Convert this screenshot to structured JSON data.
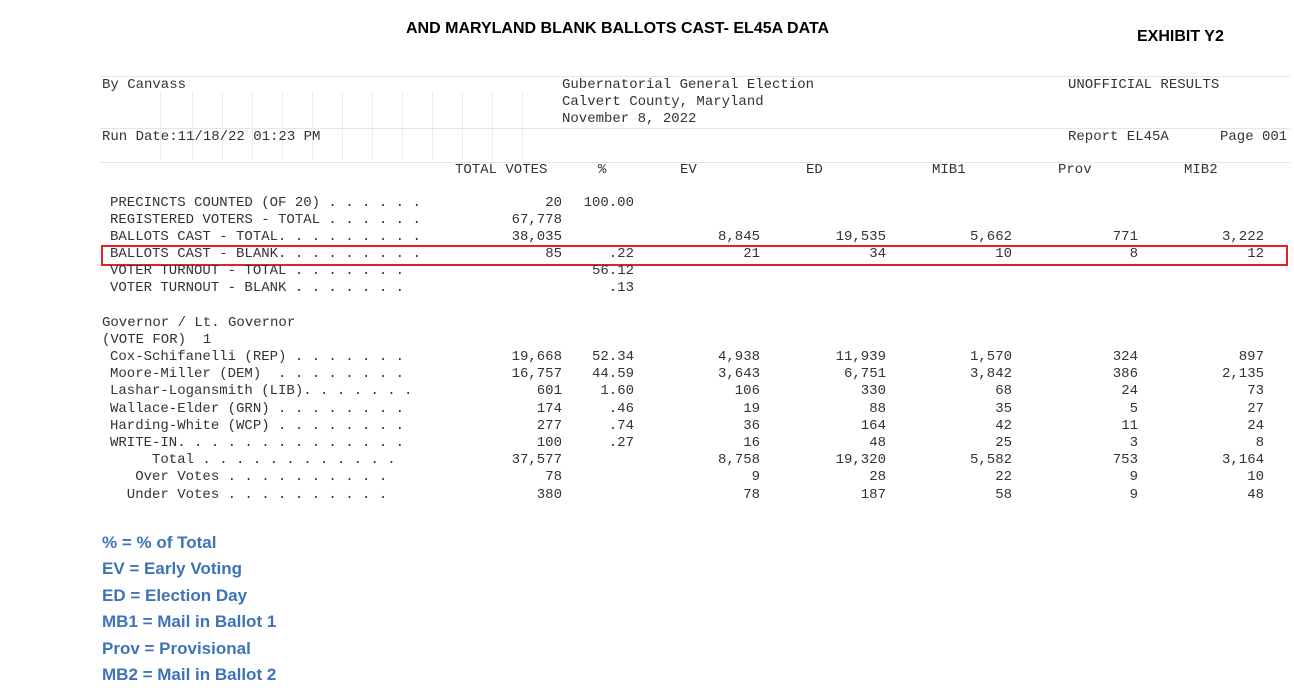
{
  "title": "AND MARYLAND BLANK BALLOTS CAST- EL45A DATA",
  "exhibit": "EXHIBIT Y2",
  "report": {
    "by": "By Canvass",
    "election": "Gubernatorial General Election",
    "county": "Calvert County, Maryland",
    "date": "November 8, 2022",
    "status": "UNOFFICIAL RESULTS",
    "run_date": "Run Date:11/18/22 01:23 PM",
    "report_id": "Report EL45A",
    "page": "Page 001"
  },
  "columns": [
    "TOTAL VOTES",
    "%",
    "EV",
    "ED",
    "MIB1",
    "Prov",
    "MIB2"
  ],
  "summary_rows": [
    {
      "label": "PRECINCTS COUNTED (OF 20) . . . . . .",
      "total": "20",
      "pct": "100.00",
      "ev": "",
      "ed": "",
      "mib1": "",
      "prov": "",
      "mib2": ""
    },
    {
      "label": "REGISTERED VOTERS - TOTAL . . . . . .",
      "total": "67,778",
      "pct": "",
      "ev": "",
      "ed": "",
      "mib1": "",
      "prov": "",
      "mib2": ""
    },
    {
      "label": "BALLOTS CAST - TOTAL. . . . . . . . .",
      "total": "38,035",
      "pct": "",
      "ev": "8,845",
      "ed": "19,535",
      "mib1": "5,662",
      "prov": "771",
      "mib2": "3,222"
    },
    {
      "label": "BALLOTS CAST - BLANK. . . . . . . . .",
      "total": "85",
      "pct": ".22",
      "ev": "21",
      "ed": "34",
      "mib1": "10",
      "prov": "8",
      "mib2": "12"
    },
    {
      "label": "VOTER TURNOUT - TOTAL . . . . . . .",
      "total": "",
      "pct": "56.12",
      "ev": "",
      "ed": "",
      "mib1": "",
      "prov": "",
      "mib2": ""
    },
    {
      "label": "VOTER TURNOUT - BLANK . . . . . . .",
      "total": "",
      "pct": ".13",
      "ev": "",
      "ed": "",
      "mib1": "",
      "prov": "",
      "mib2": ""
    }
  ],
  "contest": {
    "title": "Governor / Lt. Governor",
    "vote_for": "(VOTE FOR)  1",
    "rows": [
      {
        "label": "Cox-Schifanelli (REP) . . . . . . .",
        "total": "19,668",
        "pct": "52.34",
        "ev": "4,938",
        "ed": "11,939",
        "mib1": "1,570",
        "prov": "324",
        "mib2": "897"
      },
      {
        "label": "Moore-Miller (DEM)  . . . . . . . .",
        "total": "16,757",
        "pct": "44.59",
        "ev": "3,643",
        "ed": "6,751",
        "mib1": "3,842",
        "prov": "386",
        "mib2": "2,135"
      },
      {
        "label": "Lashar-Logansmith (LIB). . . . . . .",
        "total": "601",
        "pct": "1.60",
        "ev": "106",
        "ed": "330",
        "mib1": "68",
        "prov": "24",
        "mib2": "73"
      },
      {
        "label": "Wallace-Elder (GRN) . . . . . . . .",
        "total": "174",
        "pct": ".46",
        "ev": "19",
        "ed": "88",
        "mib1": "35",
        "prov": "5",
        "mib2": "27"
      },
      {
        "label": "Harding-White (WCP) . . . . . . . .",
        "total": "277",
        "pct": ".74",
        "ev": "36",
        "ed": "164",
        "mib1": "42",
        "prov": "11",
        "mib2": "24"
      },
      {
        "label": "WRITE-IN. . . . . . . . . . . . . .",
        "total": "100",
        "pct": ".27",
        "ev": "16",
        "ed": "48",
        "mib1": "25",
        "prov": "3",
        "mib2": "8"
      },
      {
        "label": "     Total . . . . . . . . . . . .",
        "total": "37,577",
        "pct": "",
        "ev": "8,758",
        "ed": "19,320",
        "mib1": "5,582",
        "prov": "753",
        "mib2": "3,164"
      },
      {
        "label": "   Over Votes . . . . . . . . . .",
        "total": "78",
        "pct": "",
        "ev": "9",
        "ed": "28",
        "mib1": "22",
        "prov": "9",
        "mib2": "10"
      },
      {
        "label": "  Under Votes . . . . . . . . . .",
        "total": "380",
        "pct": "",
        "ev": "78",
        "ed": "187",
        "mib1": "58",
        "prov": "9",
        "mib2": "48"
      }
    ]
  },
  "legend": [
    "% = % of Total",
    "EV = Early Voting",
    "ED = Election Day",
    "MB1 = Mail in Ballot 1",
    "Prov = Provisional",
    "MB2 = Mail in Ballot 2"
  ],
  "colors": {
    "highlight": "#e3232b",
    "legend_text": "#3f73b7"
  }
}
